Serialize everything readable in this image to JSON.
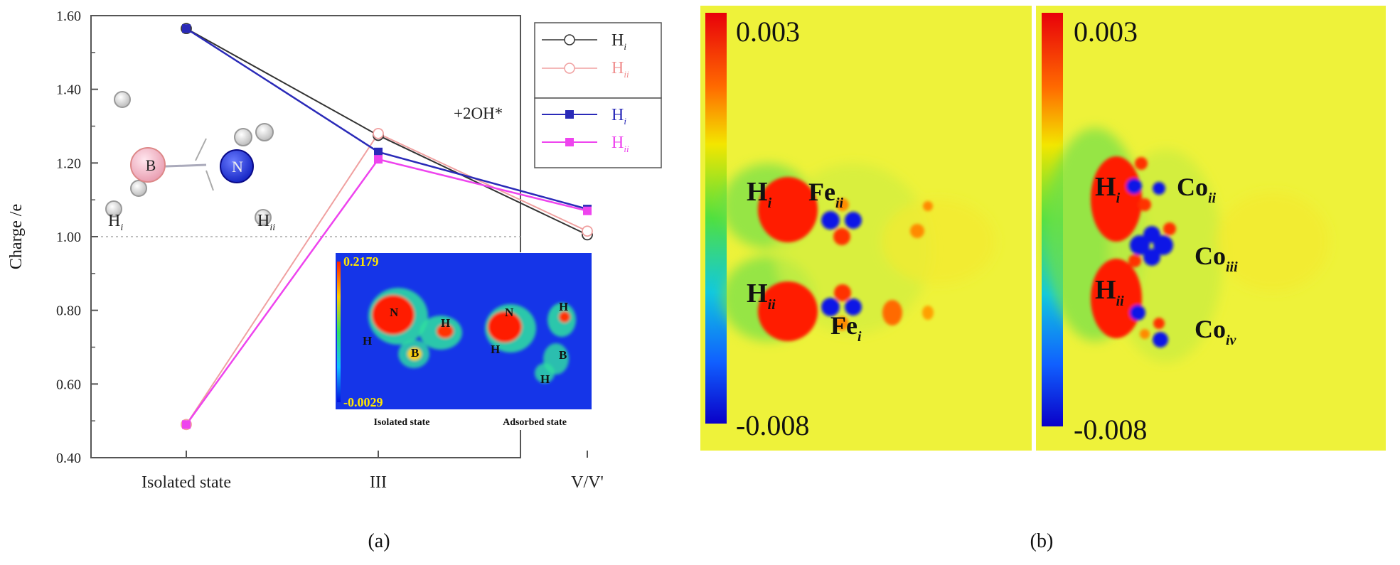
{
  "chart_data": {
    "type": "line",
    "categories": [
      "Isolated state",
      "III",
      "V/V'"
    ],
    "ylabel": "Charge /e",
    "ylim": [
      0.4,
      1.6
    ],
    "yticks": [
      "0.40",
      "0.60",
      "0.80",
      "1.00",
      "1.20",
      "1.40",
      "1.60"
    ],
    "reference_line": 1.0,
    "legend_group_label": "+2OH*",
    "series": [
      {
        "name": "H",
        "sub": "i",
        "marker": "open-circle",
        "color": "#333333",
        "values": [
          1.565,
          1.275,
          1.005
        ]
      },
      {
        "name": "H",
        "sub": "ii",
        "marker": "open-circle",
        "color": "#f0a0a0",
        "values": [
          0.49,
          1.28,
          1.015
        ]
      },
      {
        "name": "H",
        "sub": "i",
        "marker": "filled-square",
        "color": "#2a2ab8",
        "values": [
          1.565,
          1.23,
          1.075
        ]
      },
      {
        "name": "H",
        "sub": "ii",
        "marker": "filled-square",
        "color": "#ee44ee",
        "values": [
          0.49,
          1.21,
          1.07
        ]
      }
    ],
    "molecule_labels": [
      {
        "text": "B"
      },
      {
        "text": "N"
      },
      {
        "text": "H",
        "sub": "i"
      },
      {
        "text": "H",
        "sub": "ii"
      }
    ],
    "inset": {
      "max": "0.2179",
      "min": "-0.0029",
      "left_label": "Isolated state",
      "right_label": "Adsorbed state",
      "atoms_left": [
        "N",
        "H",
        "H",
        "B"
      ],
      "atoms_right": [
        "N",
        "H",
        "H",
        "B",
        "H"
      ]
    }
  },
  "panel_b": {
    "left": {
      "max": "0.003",
      "min": "-0.008",
      "labels": [
        {
          "text": "H",
          "sub": "i"
        },
        {
          "text": "Fe",
          "sub": "ii"
        },
        {
          "text": "H",
          "sub": "ii"
        },
        {
          "text": "Fe",
          "sub": "i"
        }
      ]
    },
    "right": {
      "max": "0.003",
      "min": "-0.008",
      "labels": [
        {
          "text": "H",
          "sub": "i"
        },
        {
          "text": "Co",
          "sub": "ii"
        },
        {
          "text": "Co",
          "sub": "iii"
        },
        {
          "text": "H",
          "sub": "ii"
        },
        {
          "text": "Co",
          "sub": "iv"
        }
      ]
    }
  },
  "captions": {
    "a": "(a)",
    "b": "(b)"
  },
  "colors": {
    "map_bg": "#eef23a",
    "red": "#ff1a00",
    "blue": "#0a14e6",
    "inset_bg": "#1535e8"
  }
}
